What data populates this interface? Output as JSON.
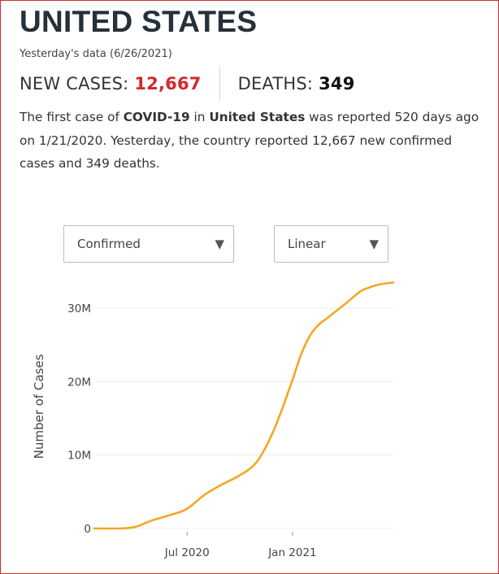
{
  "header": {
    "title": "UNITED STATES",
    "date_text": "Yesterday's data (6/26/2021)",
    "new_cases_label": "NEW CASES:",
    "new_cases_value": "12,667",
    "deaths_label": "DEATHS:",
    "deaths_value": "349"
  },
  "description": {
    "p1": "The first case of ",
    "bold1": "COVID-19",
    "p2": " in ",
    "bold2": "United States",
    "p3": " was reported 520 days ago on 1/21/2020. Yesterday, the country reported 12,667 new confirmed cases and 349 deaths."
  },
  "controls": {
    "type_select": {
      "value": "Confirmed",
      "caret_icon": "caret-down-icon"
    },
    "scale_select": {
      "value": "Linear",
      "caret_icon": "caret-down-icon"
    }
  },
  "colors": {
    "line": "#f5a623",
    "accent_red": "#d6272d",
    "title": "#253039"
  },
  "chart_data": {
    "type": "line",
    "title": "",
    "xlabel": "",
    "ylabel": "Number of Cases",
    "y_ticks": [
      0,
      10000000,
      20000000,
      30000000
    ],
    "y_tick_labels": [
      "0",
      "10M",
      "20M",
      "30M"
    ],
    "x_ticks": [
      "2020-07-01",
      "2021-01-01"
    ],
    "x_tick_labels": [
      "Jul 2020",
      "Jan 2021"
    ],
    "ylim": [
      0,
      33000000
    ],
    "xlim": [
      "2020-01-21",
      "2021-06-26"
    ],
    "grid": true,
    "series": [
      {
        "values": [
          {
            "x": "2020-01-21",
            "y": 0
          },
          {
            "x": "2020-03-01",
            "y": 100
          },
          {
            "x": "2020-03-31",
            "y": 190000
          },
          {
            "x": "2020-04-30",
            "y": 1070000
          },
          {
            "x": "2020-05-31",
            "y": 1800000
          },
          {
            "x": "2020-06-30",
            "y": 2640000
          },
          {
            "x": "2020-07-31",
            "y": 4560000
          },
          {
            "x": "2020-08-31",
            "y": 6000000
          },
          {
            "x": "2020-09-30",
            "y": 7200000
          },
          {
            "x": "2020-10-31",
            "y": 9100000
          },
          {
            "x": "2020-11-30",
            "y": 13500000
          },
          {
            "x": "2020-12-31",
            "y": 20000000
          },
          {
            "x": "2021-01-15",
            "y": 23500000
          },
          {
            "x": "2021-01-31",
            "y": 26200000
          },
          {
            "x": "2021-02-15",
            "y": 27700000
          },
          {
            "x": "2021-02-28",
            "y": 28500000
          },
          {
            "x": "2021-03-31",
            "y": 30400000
          },
          {
            "x": "2021-04-30",
            "y": 32300000
          },
          {
            "x": "2021-05-15",
            "y": 32800000
          },
          {
            "x": "2021-05-31",
            "y": 33200000
          },
          {
            "x": "2021-06-26",
            "y": 33500000
          }
        ]
      }
    ]
  }
}
